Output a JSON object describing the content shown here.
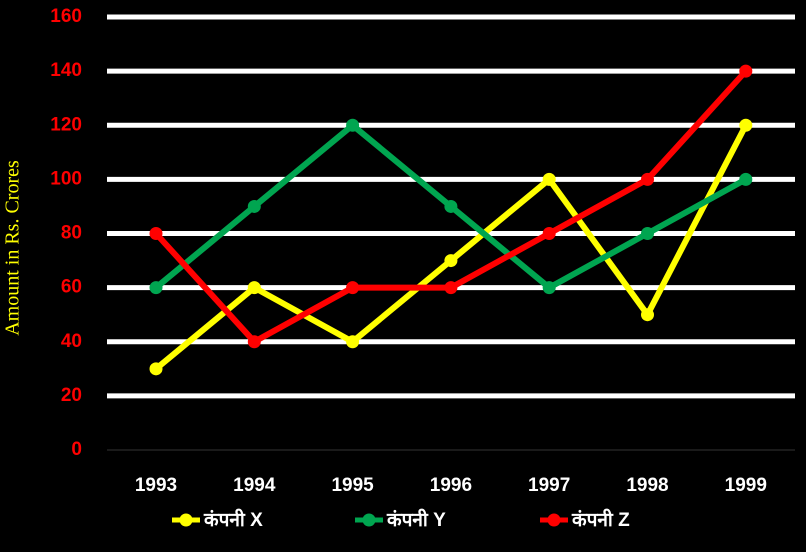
{
  "chart_data": {
    "type": "line",
    "y_label": "Amount in Rs. Crores",
    "categories": [
      "1993",
      "1994",
      "1995",
      "1996",
      "1997",
      "1998",
      "1999"
    ],
    "series": [
      {
        "name": "कंपनी X",
        "color": "#ffff00",
        "values": [
          30,
          60,
          40,
          70,
          100,
          50,
          120
        ]
      },
      {
        "name": "कंपनी Y",
        "color": "#00a550",
        "values": [
          60,
          90,
          120,
          90,
          60,
          80,
          100
        ]
      },
      {
        "name": "कंपनी Z",
        "color": "#ff0000",
        "values": [
          80,
          40,
          60,
          60,
          80,
          100,
          140
        ]
      }
    ],
    "ylim": [
      0,
      160
    ],
    "yticks": [
      0,
      20,
      40,
      60,
      80,
      100,
      120,
      140,
      160
    ],
    "grid": true,
    "legend": "bottom"
  }
}
